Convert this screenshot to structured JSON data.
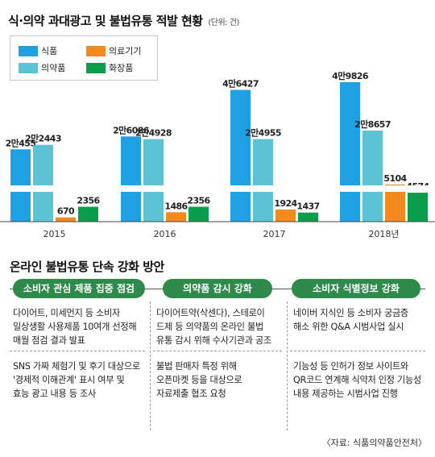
{
  "title": "식·의약 과대광고 및 불법유통 적발 현황",
  "unit": "(단위: 건)",
  "colors": {
    "food": "#1fa0e3",
    "medical_device": "#f28a1e",
    "drug": "#5cc3d4",
    "cosmetics": "#0a9d4c"
  },
  "chart_data": {
    "type": "bar",
    "categories": [
      "2015",
      "2016",
      "2017",
      "2018년"
    ],
    "series": [
      {
        "name": "식품",
        "values": [
          20455,
          26086,
          46427,
          49826
        ],
        "labels": [
          "2만455",
          "2만6086",
          "4만6427",
          "4만9826"
        ]
      },
      {
        "name": "의약품",
        "values": [
          22443,
          24928,
          24955,
          28657
        ],
        "labels": [
          "2만2443",
          "2만4928",
          "2만4955",
          "2만8657"
        ]
      },
      {
        "name": "의료기기",
        "values": [
          670,
          1486,
          1924,
          5104
        ],
        "labels": [
          "670",
          "1486",
          "1924",
          "5104"
        ]
      },
      {
        "name": "화장품",
        "values": [
          2356,
          2356,
          1437,
          4574
        ],
        "labels": [
          "2356",
          "2356",
          "1437",
          "4574"
        ]
      }
    ],
    "axis_break": true,
    "grid": false,
    "legend_position": "top-left"
  },
  "section": {
    "title": "온라인 불법유통 단속 강화 방안",
    "columns": [
      {
        "header": "소비자 관심 제품 집중 점검",
        "items": [
          [
            "다이어트, 미세먼지 등 소비자",
            "일상생활 사용제품 10여개 선정해",
            "매월 점검 결과 발표"
          ],
          [
            "SNS 가짜 체험기 및 후기 대상으로",
            "'경제적 이해관계' 표시 여부 및",
            "효능 광고 내용 등 조사"
          ]
        ]
      },
      {
        "header": "의약품 감시 강화",
        "items": [
          [
            "다이어트약(삭센다), 스테로이",
            "드제 등 의약품의 온라인 불법",
            "유통 감시 위해 수사기관과 공조"
          ],
          [
            "불법 판매자 특정 위해",
            "오픈마켓 등을 대상으로",
            "자료제출 협조 요청"
          ]
        ]
      },
      {
        "header": "소비자 식별정보 강화",
        "items": [
          [
            "네이버 지식인 등 소비자 궁금증",
            "해소 위한 Q&A 시범사업 실시"
          ],
          [
            "기능성 등 인허가 정보 사이트와",
            "QR코드 연계해 식약처 인정 기능성",
            "내용 제공하는 시범사업 진행"
          ]
        ]
      }
    ]
  },
  "source": "〈자료: 식품의약품안전처〉"
}
